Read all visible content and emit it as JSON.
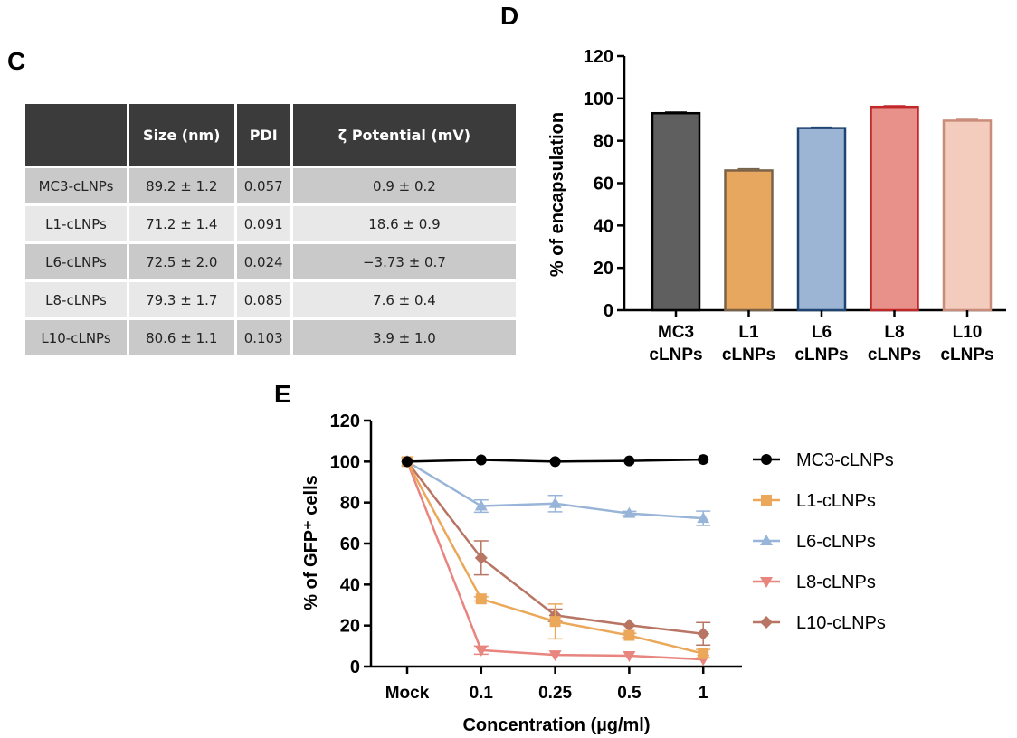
{
  "panels": {
    "c": "C",
    "d": "D",
    "e": "E"
  },
  "table": {
    "headers": [
      "",
      "Size (nm)",
      "PDI",
      "ζ Potential (mV)"
    ],
    "rows": [
      [
        "MC3-cLNPs",
        "89.2 ± 1.2",
        "0.057",
        "0.9 ± 0.2"
      ],
      [
        "L1-cLNPs",
        "71.2 ± 1.4",
        "0.091",
        "18.6 ± 0.9"
      ],
      [
        "L6-cLNPs",
        "72.5 ± 2.0",
        "0.024",
        "−3.73 ± 0.7"
      ],
      [
        "L8-cLNPs",
        "79.3 ± 1.7",
        "0.085",
        "7.6 ± 0.4"
      ],
      [
        "L10-cLNPs",
        "80.6 ± 1.1",
        "0.103",
        "3.9 ± 1.0"
      ]
    ]
  },
  "chart_data": [
    {
      "type": "bar",
      "ylabel": "% of encapsulation",
      "ylim": [
        0,
        120
      ],
      "yticks": [
        0,
        20,
        40,
        60,
        80,
        100,
        120
      ],
      "categories": [
        [
          "MC3",
          "cLNPs"
        ],
        [
          "L1",
          "cLNPs"
        ],
        [
          "L6",
          "cLNPs"
        ],
        [
          "L8",
          "cLNPs"
        ],
        [
          "L10",
          "cLNPs"
        ]
      ],
      "values": [
        93,
        66,
        86,
        96,
        89.5
      ],
      "errors": [
        0.5,
        0.8,
        0.4,
        0.5,
        0.6
      ],
      "fills": [
        "#5f5f5f",
        "#E8A75E",
        "#9DB5D4",
        "#E8908A",
        "#F3CCBE"
      ],
      "strokes": [
        "#000000",
        "#7a6248",
        "#1F4472",
        "#C0282A",
        "#C98C7A"
      ]
    },
    {
      "type": "line",
      "xlabel": "Concentration (µg/ml)",
      "ylabel": "% of GFP⁺ cells",
      "ylim": [
        0,
        120
      ],
      "yticks": [
        0,
        20,
        40,
        60,
        80,
        100,
        120
      ],
      "categories": [
        "Mock",
        "0.1",
        "0.25",
        "0.5",
        "1"
      ],
      "legend": "right",
      "series": [
        {
          "name": "MC3-cLNPs",
          "marker": "circle",
          "color": "#000000",
          "values": [
            100,
            100.8,
            100,
            100.3,
            101
          ],
          "errors": [
            0,
            0,
            0,
            0,
            0
          ]
        },
        {
          "name": "L1-cLNPs",
          "marker": "square",
          "color": "#EBA85A",
          "values": [
            100,
            33,
            22,
            15.2,
            6.3
          ],
          "errors": [
            0,
            1,
            8.5,
            1,
            2
          ]
        },
        {
          "name": "L6-cLNPs",
          "marker": "triangle-up",
          "color": "#98B4D8",
          "values": [
            100,
            78.3,
            79.5,
            74.7,
            72.3
          ],
          "errors": [
            0,
            3,
            4,
            1,
            3.5
          ]
        },
        {
          "name": "L8-cLNPs",
          "marker": "triangle-down",
          "color": "#E8857F",
          "values": [
            100,
            8,
            5.7,
            5.3,
            3.5
          ],
          "errors": [
            0,
            2,
            0.5,
            0.5,
            0.5
          ]
        },
        {
          "name": "L10-cLNPs",
          "marker": "diamond",
          "color": "#B87563",
          "values": [
            100,
            53,
            25,
            20.2,
            16
          ],
          "errors": [
            0,
            8.3,
            3,
            0.5,
            5.5
          ]
        }
      ]
    }
  ]
}
